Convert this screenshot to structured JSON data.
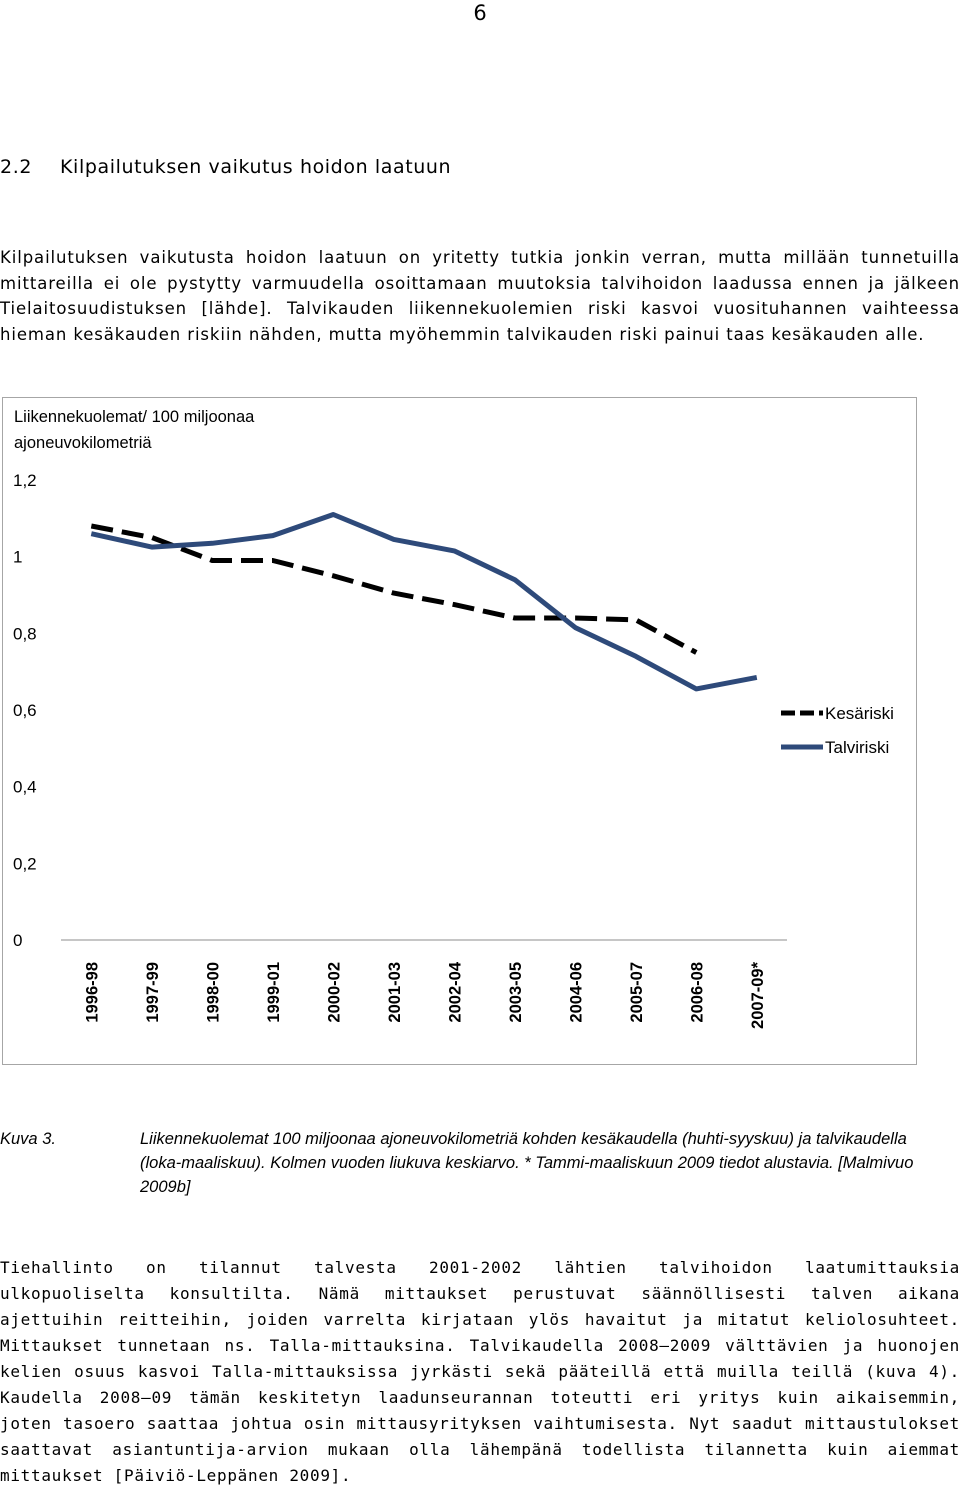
{
  "page_number": "6",
  "section": {
    "number": "2.2",
    "title": "Kilpailutuksen vaikutus hoidon laatuun"
  },
  "paragraph1": "Kilpailutuksen vaikutusta hoidon laatuun on yritetty tutkia jonkin verran, mutta millään tunnetuilla mittareilla ei ole pystytty varmuudella osoittamaan muutoksia talvihoidon laadussa ennen ja jälkeen Tielaitosuudistuksen [lähde]. Talvikauden liikennekuolemien riski kasvoi vuosituhannen vaihteessa hieman kesäkauden riskiin nähden, mutta myöhemmin talvikauden riski painui taas kesäkauden alle.",
  "chart_data": {
    "type": "line",
    "ylabel_line1": "Liikennekuolemat/ 100 miljoonaa",
    "ylabel_line2": "ajoneuvokilometriä",
    "ylim": [
      0,
      1.2
    ],
    "yticks": [
      "0",
      "0,2",
      "0,4",
      "0,6",
      "0,8",
      "1",
      "1,2"
    ],
    "grid": false,
    "legend_position": "right",
    "categories": [
      "1996-98",
      "1997-99",
      "1998-00",
      "1999-01",
      "2000-02",
      "2001-03",
      "2002-04",
      "2003-05",
      "2004-06",
      "2005-07",
      "2006-08",
      "2007-09*"
    ],
    "series": [
      {
        "name": "Kesäriski",
        "style": "dashed",
        "color": "#000000",
        "values": [
          1.08,
          1.05,
          0.99,
          0.99,
          0.95,
          0.905,
          0.875,
          0.84,
          0.84,
          0.835,
          0.75,
          null
        ]
      },
      {
        "name": "Talviriski",
        "style": "solid",
        "color": "#2e4a7a",
        "values": [
          1.06,
          1.025,
          1.035,
          1.055,
          1.11,
          1.045,
          1.015,
          0.94,
          0.815,
          0.74,
          0.655,
          0.685
        ]
      }
    ]
  },
  "caption": {
    "label": "Kuva 3.",
    "text": "Liikennekuolemat 100 miljoonaa ajoneuvokilometriä kohden kesäkaudella (huhti-syyskuu) ja talvikaudella (loka-maaliskuu). Kolmen vuoden liukuva keskiarvo. * Tammi-maaliskuun 2009 tiedot alustavia. [Malmivuo 2009b]"
  },
  "paragraph2": "Tiehallinto on tilannut talvesta 2001-2002 lähtien talvihoidon laatumittauksia ulkopuoliselta konsultilta. Nämä mittaukset perustuvat säännöllisesti talven aikana ajettuihin reitteihin, joiden varrelta kirjataan ylös havaitut ja mitatut keliolosuhteet. Mittaukset tunnetaan ns. Talla-mittauksina. Talvikaudella 2008—2009 välttävien ja huonojen kelien osuus kasvoi Talla-mittauksissa jyrkästi sekä pääteillä että muilla teillä (kuva 4). Kaudella 2008—09 tämän keskitetyn laadunseurannan toteutti eri yritys kuin aikaisemmin, joten tasoero saattaa johtua osin mittausyrityksen vaihtumisesta. Nyt saadut mittaustulokset saattavat asiantuntija-arvion mukaan olla lähempänä todellista tilannetta kuin aiemmat mittaukset [Päiviö-Leppänen 2009]."
}
